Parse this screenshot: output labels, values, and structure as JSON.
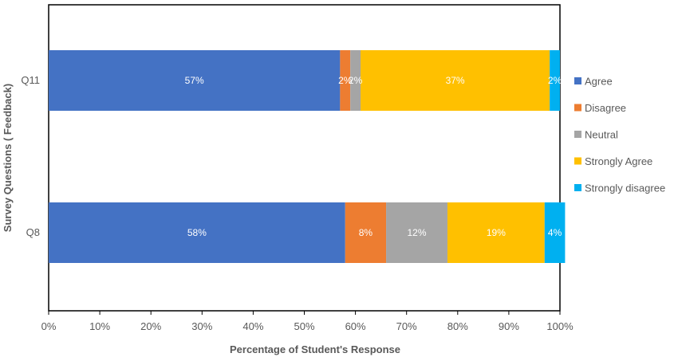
{
  "chart_data": {
    "type": "bar",
    "orientation": "horizontal",
    "stacked": true,
    "categories": [
      "Q11",
      "Q8"
    ],
    "series": [
      {
        "name": "Agree",
        "color": "#4472C4",
        "values": [
          57,
          58
        ],
        "labels": [
          "57%",
          "58%"
        ]
      },
      {
        "name": "Disagree",
        "color": "#ED7D31",
        "values": [
          2,
          8
        ],
        "labels": [
          "2%",
          "8%"
        ]
      },
      {
        "name": "Neutral",
        "color": "#A5A5A5",
        "values": [
          2,
          12
        ],
        "labels": [
          "2%",
          "12%"
        ]
      },
      {
        "name": "Strongly Agree",
        "color": "#FFC000",
        "values": [
          37,
          19
        ],
        "labels": [
          "37%",
          "19%"
        ]
      },
      {
        "name": "Strongly disagree",
        "color": "#00B0F0",
        "values": [
          2,
          4
        ],
        "labels": [
          "2%",
          "4%"
        ]
      }
    ],
    "xlabel": "Percentage of Student's Response",
    "ylabel": "Survey Questions ( Feedback)",
    "xlim": [
      0,
      100
    ],
    "xticks": [
      "0%",
      "10%",
      "20%",
      "30%",
      "40%",
      "50%",
      "60%",
      "70%",
      "80%",
      "90%",
      "100%"
    ],
    "grid": false,
    "legend_position": "right"
  }
}
